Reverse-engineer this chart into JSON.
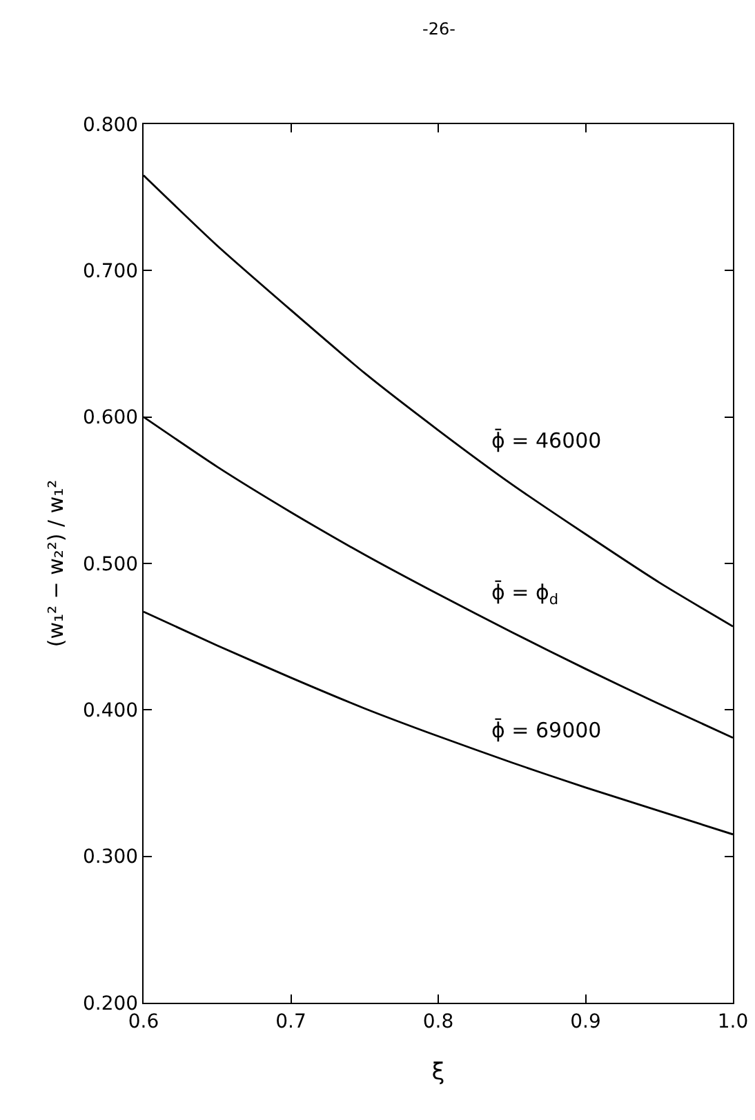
{
  "chart_data": {
    "type": "line",
    "annotations": [
      "-26-"
    ],
    "xlabel": "ξ",
    "ylabel": "(w₁² − w₂²) / w₁²",
    "x": [
      0.6,
      0.65,
      0.7,
      0.75,
      0.8,
      0.85,
      0.9,
      0.95,
      1.0
    ],
    "series": [
      {
        "name": "ϕ̄ = 46000",
        "color": "#000000",
        "values": [
          0.765,
          0.717,
          0.673,
          0.63,
          0.591,
          0.554,
          0.52,
          0.487,
          0.457
        ]
      },
      {
        "name": "ϕ̄ = ϕ$_{d}$",
        "color": "#000000",
        "values": [
          0.6,
          0.566,
          0.535,
          0.506,
          0.479,
          0.453,
          0.428,
          0.404,
          0.381
        ]
      },
      {
        "name": "ϕ̄ = 69000",
        "color": "#000000",
        "values": [
          0.467,
          0.444,
          0.422,
          0.401,
          0.382,
          0.364,
          0.347,
          0.331,
          0.315
        ]
      }
    ],
    "xlim": [
      0.6,
      1.0
    ],
    "ylim": [
      0.2,
      0.8
    ],
    "xticks": [
      0.6,
      0.7,
      0.8,
      0.9,
      {
        "value": 1.0,
        "label": "1.0"
      }
    ],
    "yticks": [
      {
        "value": 0.2,
        "label": "0.200"
      },
      {
        "value": 0.3,
        "label": "0.300"
      },
      {
        "value": 0.4,
        "label": "0.400"
      },
      {
        "value": 0.5,
        "label": "0.500"
      },
      {
        "value": 0.6,
        "label": "0.600"
      },
      {
        "value": 0.7,
        "label": "0.700"
      },
      {
        "value": 0.8,
        "label": "0.800"
      }
    ],
    "grid": false,
    "legend": false,
    "line_style": "solid"
  }
}
